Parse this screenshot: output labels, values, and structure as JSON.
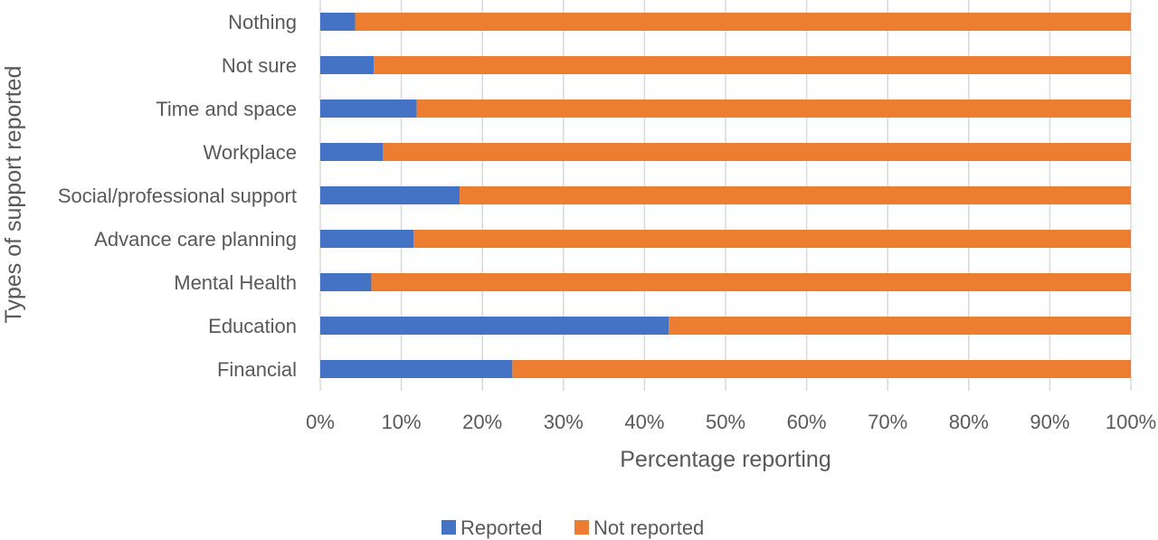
{
  "chart_data": {
    "type": "bar",
    "orientation": "horizontal",
    "stacked": "percent",
    "title": "",
    "xlabel": "Percentage reporting",
    "ylabel": "Types of support reported",
    "categories": [
      "Nothing",
      "Not sure",
      "Time and space",
      "Workplace",
      "Social/professional support",
      "Advance care planning",
      "Mental Health",
      "Education",
      "Financial"
    ],
    "series": [
      {
        "name": "Reported",
        "color": "#4472c4",
        "values": [
          4.3,
          6.6,
          11.9,
          7.7,
          17.2,
          11.5,
          6.3,
          43.0,
          23.7
        ]
      },
      {
        "name": "Not reported",
        "color": "#ed7d31",
        "values": [
          95.7,
          93.4,
          88.1,
          92.3,
          82.8,
          88.5,
          93.7,
          57.0,
          76.3
        ]
      }
    ],
    "xlim": [
      0,
      100
    ],
    "xticks": [
      "0%",
      "10%",
      "20%",
      "30%",
      "40%",
      "50%",
      "60%",
      "70%",
      "80%",
      "90%",
      "100%"
    ],
    "grid": true,
    "legend_position": "bottom"
  }
}
